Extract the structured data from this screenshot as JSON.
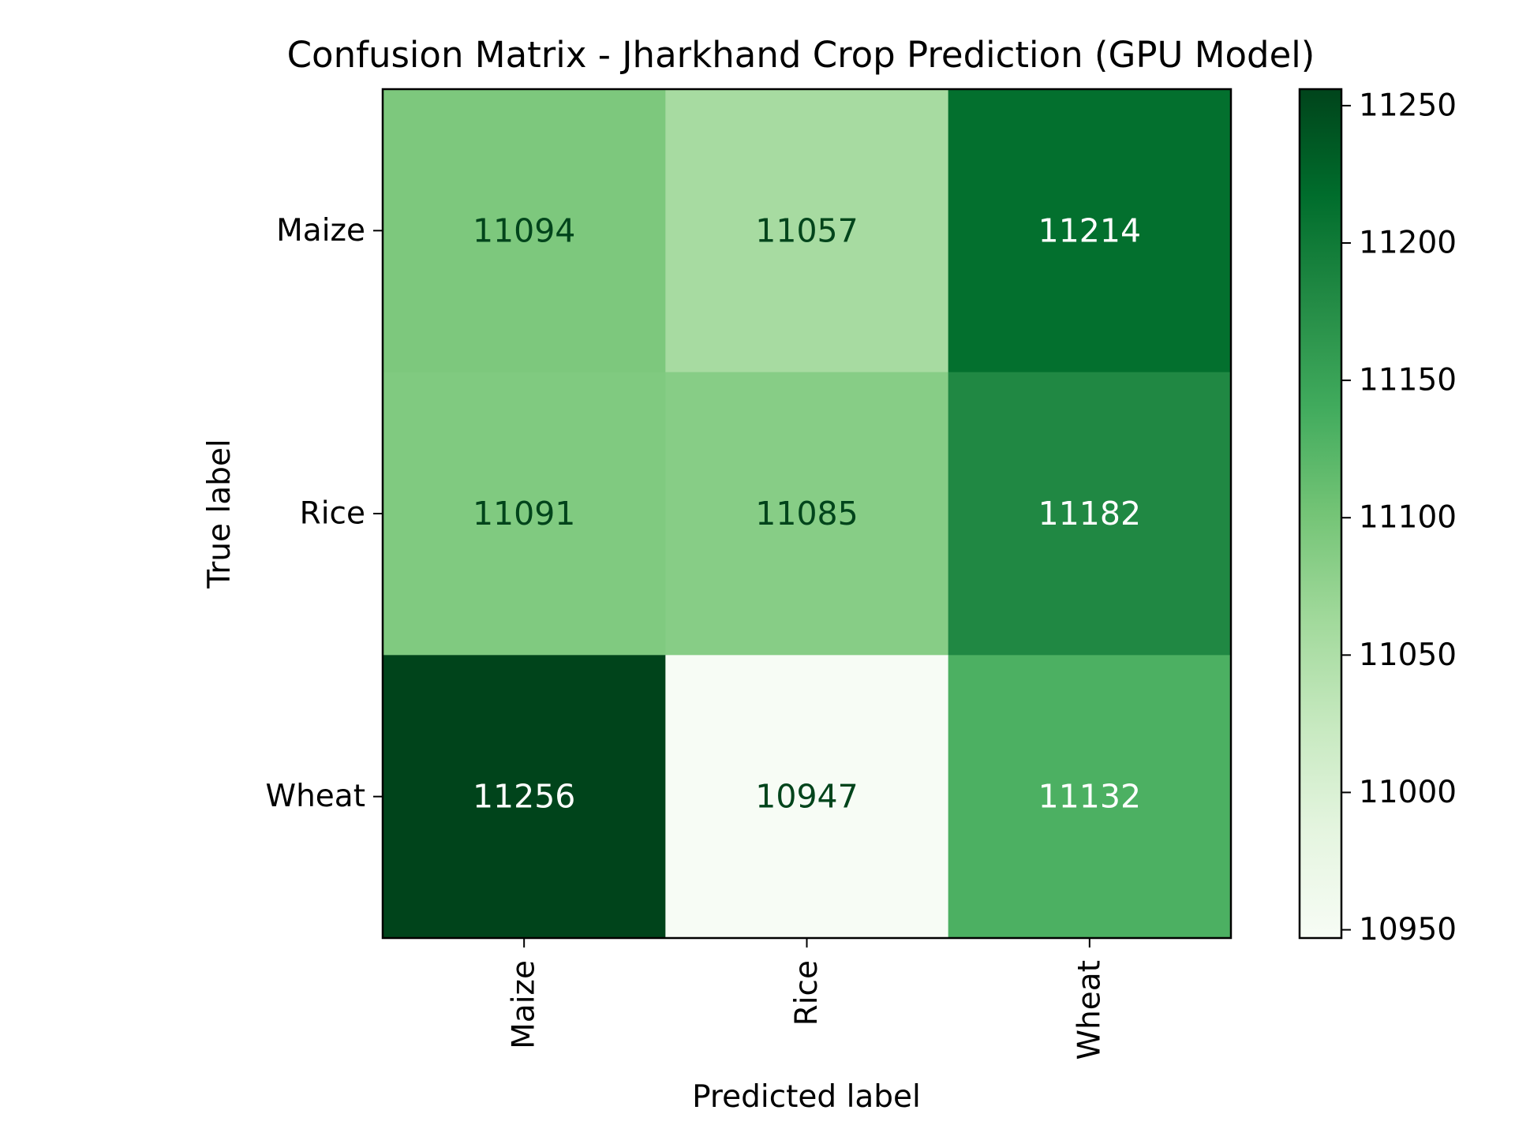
{
  "chart_data": {
    "type": "heatmap",
    "title": "Confusion Matrix - Jharkhand Crop Prediction (GPU Model)",
    "xlabel": "Predicted label",
    "ylabel": "True label",
    "x_categories": [
      "Maize",
      "Rice",
      "Wheat"
    ],
    "y_categories": [
      "Maize",
      "Rice",
      "Wheat"
    ],
    "matrix": [
      [
        11094,
        11057,
        11214
      ],
      [
        11091,
        11085,
        11182
      ],
      [
        11256,
        10947,
        11132
      ]
    ],
    "colormap": "Greens",
    "colorbar": {
      "range": [
        10947,
        11256
      ],
      "ticks": [
        10950,
        11000,
        11050,
        11100,
        11150,
        11200,
        11250
      ]
    },
    "grid": false,
    "text_colors": {
      "dark": "#00441b",
      "light": "#ffffff"
    }
  }
}
